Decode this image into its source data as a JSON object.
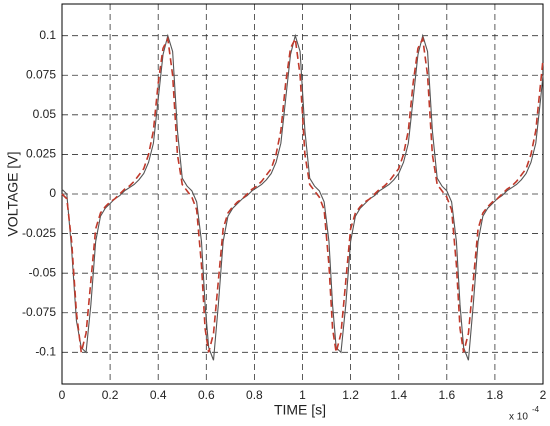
{
  "chart_data": {
    "type": "line",
    "x_label": "TIME [s]",
    "y_label": "VOLTAGE [V]",
    "x_multiplier": "x 10",
    "x_exponent": "-4",
    "x": [
      0,
      0.02,
      0.04,
      0.06,
      0.08,
      0.1,
      0.12,
      0.14,
      0.16,
      0.18,
      0.2,
      0.22,
      0.24,
      0.26,
      0.28,
      0.3,
      0.32,
      0.34,
      0.36,
      0.38,
      0.4,
      0.42,
      0.44,
      0.46,
      0.48,
      0.5,
      0.52,
      0.54,
      0.56,
      0.58,
      0.595,
      0.61,
      0.63,
      0.65,
      0.67,
      0.69,
      0.71,
      0.73,
      0.75,
      0.77,
      0.79,
      0.81,
      0.83,
      0.85,
      0.87,
      0.89,
      0.91,
      0.93,
      0.95,
      0.97,
      0.99,
      1.01,
      1.03,
      1.05,
      1.07,
      1.09,
      1.11,
      1.125,
      1.14,
      1.16,
      1.18,
      1.2,
      1.22,
      1.24,
      1.26,
      1.28,
      1.3,
      1.32,
      1.34,
      1.36,
      1.38,
      1.4,
      1.42,
      1.44,
      1.46,
      1.48,
      1.5,
      1.52,
      1.54,
      1.56,
      1.58,
      1.6,
      1.62,
      1.64,
      1.655,
      1.67,
      1.69,
      1.71,
      1.73,
      1.75,
      1.77,
      1.79,
      1.81,
      1.83,
      1.85,
      1.87,
      1.89,
      1.91,
      1.93,
      1.95,
      1.97,
      1.99,
      2
    ],
    "series": [
      {
        "color": "#555555",
        "dashed": false,
        "values": [
          0.003,
          0,
          -0.035,
          -0.08,
          -0.097,
          -0.1,
          -0.07,
          -0.03,
          -0.014,
          -0.009,
          -0.006,
          -0.003,
          -0.001,
          0.002,
          0.004,
          0.006,
          0.009,
          0.013,
          0.02,
          0.032,
          0.06,
          0.088,
          0.1,
          0.09,
          0.04,
          0.01,
          0.005,
          0.002,
          -0.005,
          -0.03,
          -0.07,
          -0.097,
          -0.105,
          -0.07,
          -0.03,
          -0.014,
          -0.009,
          -0.006,
          -0.003,
          -0.001,
          0.002,
          0.004,
          0.006,
          0.009,
          0.013,
          0.02,
          0.032,
          0.06,
          0.088,
          0.1,
          0.09,
          0.04,
          0.01,
          0.005,
          0.002,
          -0.005,
          -0.03,
          -0.07,
          -0.097,
          -0.1,
          -0.07,
          -0.03,
          -0.014,
          -0.009,
          -0.006,
          -0.003,
          -0.001,
          0.002,
          0.004,
          0.006,
          0.009,
          0.013,
          0.02,
          0.032,
          0.06,
          0.088,
          0.1,
          0.09,
          0.04,
          0.01,
          0.005,
          0.002,
          -0.005,
          -0.03,
          -0.07,
          -0.097,
          -0.105,
          -0.07,
          -0.03,
          -0.014,
          -0.009,
          -0.006,
          -0.003,
          -0.001,
          0.002,
          0.004,
          0.006,
          0.009,
          0.013,
          0.02,
          0.032,
          0.06,
          0.075
        ]
      },
      {
        "color": "#c0392b",
        "dashed": true,
        "values": [
          0,
          -0.003,
          -0.03,
          -0.075,
          -0.1,
          -0.088,
          -0.055,
          -0.022,
          -0.012,
          -0.008,
          -0.005,
          -0.003,
          0,
          0.003,
          0.005,
          0.008,
          0.012,
          0.016,
          0.025,
          0.04,
          0.07,
          0.092,
          0.098,
          0.075,
          0.025,
          0.006,
          0.002,
          -0.002,
          -0.01,
          -0.045,
          -0.085,
          -0.1,
          -0.088,
          -0.055,
          -0.022,
          -0.012,
          -0.008,
          -0.005,
          -0.003,
          0,
          0.003,
          0.005,
          0.008,
          0.012,
          0.016,
          0.025,
          0.04,
          0.07,
          0.092,
          0.098,
          0.075,
          0.025,
          0.006,
          0.002,
          -0.002,
          -0.01,
          -0.045,
          -0.085,
          -0.1,
          -0.088,
          -0.055,
          -0.022,
          -0.012,
          -0.008,
          -0.005,
          -0.003,
          0,
          0.003,
          0.005,
          0.008,
          0.012,
          0.016,
          0.025,
          0.04,
          0.07,
          0.092,
          0.098,
          0.075,
          0.025,
          0.006,
          0.002,
          -0.002,
          -0.01,
          -0.045,
          -0.085,
          -0.1,
          -0.088,
          -0.055,
          -0.022,
          -0.012,
          -0.008,
          -0.005,
          -0.003,
          0,
          0.003,
          0.005,
          0.008,
          0.012,
          0.016,
          0.025,
          0.04,
          0.07,
          0.085
        ]
      }
    ],
    "xlim": [
      0,
      2
    ],
    "xticks": [
      0,
      0.2,
      0.4,
      0.6,
      0.8,
      1,
      1.2,
      1.4,
      1.6,
      1.8,
      2
    ],
    "ylim": [
      -0.12,
      0.12
    ],
    "yticks": [
      -0.1,
      -0.075,
      -0.05,
      -0.025,
      0,
      0.025,
      0.05,
      0.075,
      0.1
    ],
    "grid": true
  }
}
